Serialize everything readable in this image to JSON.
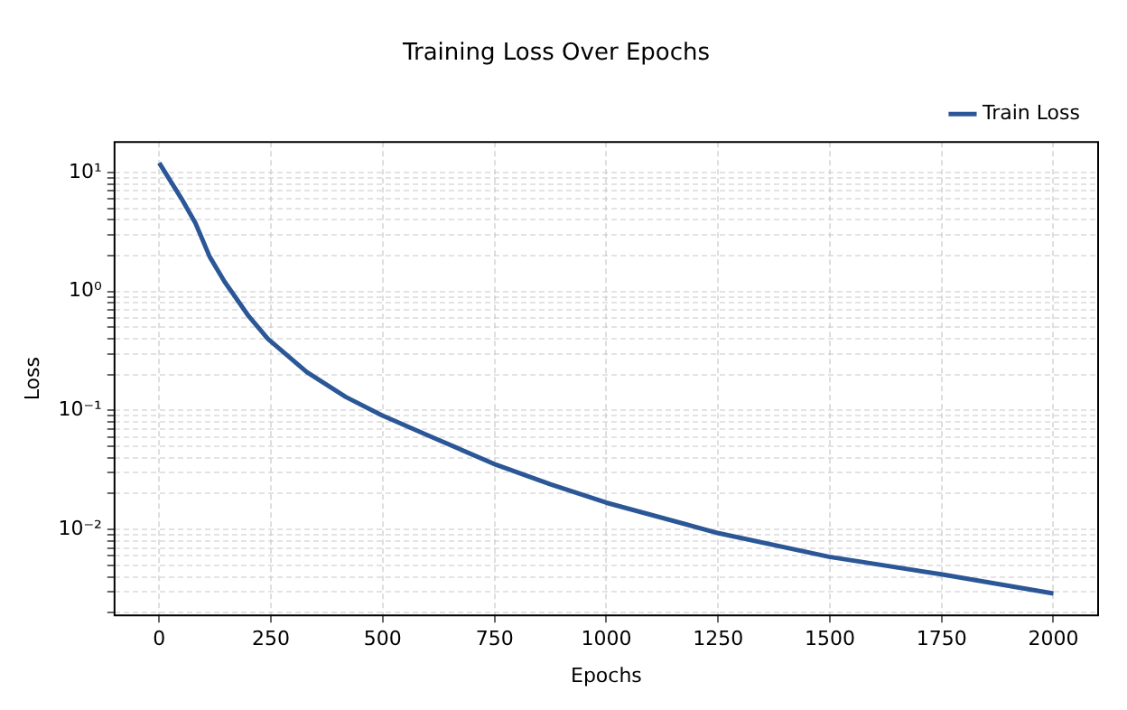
{
  "chart_data": {
    "type": "line",
    "title": "Training Loss Over Epochs",
    "xlabel": "Epochs",
    "ylabel": "Loss",
    "x": [
      0,
      50,
      81,
      113,
      146,
      200,
      243,
      330,
      417,
      498,
      600,
      753,
      875,
      1000,
      1251,
      1498,
      1749,
      2000
    ],
    "series": [
      {
        "name": "Train Loss",
        "color": "#2b5797",
        "values": [
          12,
          6.0,
          3.75,
          1.95,
          1.21,
          0.62,
          0.4,
          0.21,
          0.13,
          0.091,
          0.062,
          0.035,
          0.024,
          0.0168,
          0.0093,
          0.0059,
          0.0042,
          0.0029
        ]
      }
    ],
    "xlim": [
      -100,
      2100
    ],
    "xticks": [
      0,
      250,
      500,
      750,
      1000,
      1250,
      1500,
      1750,
      2000
    ],
    "ylim": [
      0.0019,
      18
    ],
    "yticks": [
      {
        "value": 0.002,
        "label": null
      },
      {
        "value": 0.003,
        "label": null
      },
      {
        "value": 0.004,
        "label": null
      },
      {
        "value": 0.005,
        "label": null
      },
      {
        "value": 0.006,
        "label": null
      },
      {
        "value": 0.007,
        "label": null
      },
      {
        "value": 0.008,
        "label": null
      },
      {
        "value": 0.009,
        "label": null
      },
      {
        "value": 0.01,
        "label": "10⁻²"
      },
      {
        "value": 0.02,
        "label": null
      },
      {
        "value": 0.03,
        "label": null
      },
      {
        "value": 0.04,
        "label": null
      },
      {
        "value": 0.05,
        "label": null
      },
      {
        "value": 0.06,
        "label": null
      },
      {
        "value": 0.07,
        "label": null
      },
      {
        "value": 0.08,
        "label": null
      },
      {
        "value": 0.09,
        "label": null
      },
      {
        "value": 0.1,
        "label": "10⁻¹"
      },
      {
        "value": 0.2,
        "label": null
      },
      {
        "value": 0.3,
        "label": null
      },
      {
        "value": 0.4,
        "label": null
      },
      {
        "value": 0.5,
        "label": null
      },
      {
        "value": 0.6,
        "label": null
      },
      {
        "value": 0.7,
        "label": null
      },
      {
        "value": 0.8,
        "label": null
      },
      {
        "value": 0.9,
        "label": null
      },
      {
        "value": 1,
        "label": "10⁰"
      },
      {
        "value": 2,
        "label": null
      },
      {
        "value": 3,
        "label": null
      },
      {
        "value": 4,
        "label": null
      },
      {
        "value": 5,
        "label": null
      },
      {
        "value": 6,
        "label": null
      },
      {
        "value": 7,
        "label": null
      },
      {
        "value": 8,
        "label": null
      },
      {
        "value": 9,
        "label": null
      },
      {
        "value": 10,
        "label": "10¹"
      }
    ],
    "log": "y",
    "grid": true,
    "legend": "top right",
    "line_style": "solid"
  }
}
